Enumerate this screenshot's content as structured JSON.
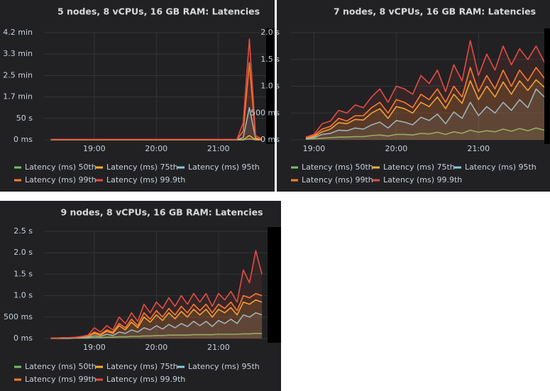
{
  "chart_data": [
    {
      "type": "line",
      "title": "5 nodes, 8 vCPUs, 16 GB RAM: Latencies",
      "x": [
        18.3,
        18.4,
        18.5,
        18.6,
        18.7,
        18.8,
        18.9,
        19.0,
        19.1,
        19.2,
        19.3,
        19.4,
        19.5,
        19.6,
        19.7,
        19.8,
        19.9,
        20.0,
        20.1,
        20.2,
        20.3,
        20.4,
        20.5,
        20.6,
        20.7,
        20.8,
        20.9,
        21.0,
        21.1,
        21.2,
        21.3,
        21.4,
        21.5,
        21.6,
        21.7
      ],
      "xlim": [
        18.19,
        21.77
      ],
      "xticks": [
        {
          "value": 19,
          "label": "19:00"
        },
        {
          "value": 20,
          "label": "20:00"
        },
        {
          "value": 21,
          "label": "21:00"
        }
      ],
      "ylim": [
        0,
        250
      ],
      "yticks": [
        {
          "value": 0,
          "label": "0 ms"
        },
        {
          "value": 50,
          "label": "50 s"
        },
        {
          "value": 100,
          "label": "1.7 min"
        },
        {
          "value": 150,
          "label": "2.5 min"
        },
        {
          "value": 200,
          "label": "3.3 min"
        },
        {
          "value": 250,
          "label": "4.2 min"
        }
      ],
      "grid": true,
      "series": [
        {
          "name": "Latency (ms) 50th",
          "color": "#73bf69",
          "values": [
            0.1,
            0.1,
            0.1,
            0.1,
            0.1,
            0.1,
            0.1,
            0.1,
            0.1,
            0.1,
            0.1,
            0.1,
            0.1,
            0.1,
            0.1,
            0.1,
            0.1,
            0.1,
            0.1,
            0.1,
            0.1,
            0.1,
            0.1,
            0.1,
            0.1,
            0.1,
            0.1,
            0.1,
            0.1,
            0.1,
            0.1,
            0.1,
            2,
            0.1,
            0.1
          ]
        },
        {
          "name": "Latency (ms) 75th",
          "color": "#f2b134",
          "values": [
            0.2,
            0.2,
            0.2,
            0.2,
            0.2,
            0.2,
            0.2,
            0.2,
            0.2,
            0.2,
            0.2,
            0.2,
            0.2,
            0.2,
            0.2,
            0.2,
            0.2,
            0.2,
            0.2,
            0.2,
            0.2,
            0.2,
            0.2,
            0.2,
            0.2,
            0.2,
            0.2,
            0.2,
            0.2,
            0.2,
            0.2,
            0.2,
            10,
            0.2,
            0.2
          ]
        },
        {
          "name": "Latency (ms) 95th",
          "color": "#8ac8d8",
          "values": [
            0.3,
            0.3,
            0.3,
            0.3,
            0.3,
            0.3,
            0.3,
            0.3,
            0.3,
            0.3,
            0.3,
            0.3,
            0.3,
            0.3,
            0.3,
            0.3,
            0.3,
            0.3,
            0.3,
            0.3,
            0.3,
            0.3,
            0.3,
            0.3,
            0.3,
            0.3,
            0.3,
            0.3,
            0.3,
            0.3,
            0.3,
            5,
            75,
            3,
            0.3
          ]
        },
        {
          "name": "Latency (ms) 99th",
          "color": "#ff7f2a",
          "values": [
            0.5,
            0.5,
            0.5,
            0.5,
            0.5,
            0.5,
            0.5,
            0.5,
            0.5,
            0.5,
            0.5,
            0.5,
            0.5,
            0.5,
            0.5,
            0.5,
            0.5,
            0.5,
            0.5,
            0.5,
            0.5,
            0.5,
            0.5,
            0.5,
            0.5,
            0.5,
            0.5,
            0.5,
            0.5,
            0.5,
            0.5,
            20,
            180,
            5,
            0.5
          ]
        },
        {
          "name": "Latency (ms) 99.9th",
          "color": "#e24d42",
          "values": [
            1,
            1,
            1,
            1,
            1,
            1,
            1,
            1,
            1,
            1,
            1,
            1,
            1,
            1,
            1,
            1,
            1,
            1,
            1,
            1,
            1,
            1,
            1,
            1,
            1,
            1,
            1,
            1,
            1,
            1,
            1,
            40,
            235,
            10,
            2
          ]
        }
      ]
    },
    {
      "type": "line",
      "title": "7 nodes, 8 vCPUs, 16 GB RAM: Latencies",
      "x": [
        18.9,
        19.0,
        19.1,
        19.2,
        19.3,
        19.4,
        19.5,
        19.6,
        19.7,
        19.8,
        19.9,
        20.0,
        20.1,
        20.2,
        20.3,
        20.4,
        20.5,
        20.6,
        20.7,
        20.8,
        20.9,
        21.0,
        21.1,
        21.2,
        21.3,
        21.4,
        21.5,
        21.6,
        21.7,
        21.8
      ],
      "xlim": [
        18.72,
        21.8
      ],
      "xticks": [
        {
          "value": 19,
          "label": "19:00"
        },
        {
          "value": 20,
          "label": "20:00"
        },
        {
          "value": 21,
          "label": "21:00"
        }
      ],
      "ylim": [
        0,
        2
      ],
      "yticks": [
        {
          "value": 0,
          "label": "0 ms"
        },
        {
          "value": 0.5,
          "label": "500 ms"
        },
        {
          "value": 1,
          "label": "1.0 s"
        },
        {
          "value": 1.5,
          "label": "1.5 s"
        },
        {
          "value": 2,
          "label": "2.0 s"
        }
      ],
      "grid": true,
      "series": [
        {
          "name": "Latency (ms) 50th",
          "color": "#73bf69",
          "values": [
            0.01,
            0.02,
            0.03,
            0.04,
            0.05,
            0.05,
            0.06,
            0.06,
            0.08,
            0.09,
            0.07,
            0.1,
            0.1,
            0.09,
            0.12,
            0.11,
            0.14,
            0.1,
            0.15,
            0.12,
            0.18,
            0.14,
            0.17,
            0.15,
            0.2,
            0.16,
            0.21,
            0.17,
            0.22,
            0.18
          ]
        },
        {
          "name": "Latency (ms) 75th",
          "color": "#f2b134",
          "values": [
            0.03,
            0.06,
            0.15,
            0.2,
            0.32,
            0.3,
            0.38,
            0.37,
            0.5,
            0.58,
            0.4,
            0.62,
            0.58,
            0.5,
            0.7,
            0.62,
            0.8,
            0.58,
            0.85,
            0.68,
            1.1,
            0.75,
            1.0,
            0.8,
            1.08,
            0.85,
            1.1,
            0.92,
            1.12,
            0.98
          ]
        },
        {
          "name": "Latency (ms) 95th",
          "color": "#8ac8d8",
          "values": [
            0.02,
            0.04,
            0.1,
            0.12,
            0.18,
            0.17,
            0.22,
            0.2,
            0.28,
            0.33,
            0.22,
            0.36,
            0.33,
            0.28,
            0.42,
            0.36,
            0.48,
            0.3,
            0.52,
            0.4,
            0.7,
            0.45,
            0.62,
            0.5,
            0.7,
            0.55,
            0.75,
            0.6,
            0.95,
            0.8
          ]
        },
        {
          "name": "Latency (ms) 99th",
          "color": "#ff7f2a",
          "values": [
            0.04,
            0.08,
            0.2,
            0.25,
            0.4,
            0.35,
            0.45,
            0.45,
            0.6,
            0.7,
            0.5,
            0.75,
            0.7,
            0.6,
            0.85,
            0.75,
            0.95,
            0.7,
            1.0,
            0.8,
            1.35,
            0.9,
            1.2,
            0.95,
            1.3,
            1.0,
            1.3,
            1.1,
            1.35,
            1.15
          ]
        },
        {
          "name": "Latency (ms) 99.9th",
          "color": "#e24d42",
          "values": [
            0.05,
            0.1,
            0.3,
            0.35,
            0.55,
            0.5,
            0.65,
            0.6,
            0.8,
            0.95,
            0.7,
            1.0,
            0.95,
            0.85,
            1.2,
            1.05,
            1.3,
            0.9,
            1.4,
            1.1,
            1.85,
            1.2,
            1.6,
            1.3,
            1.75,
            1.4,
            1.7,
            1.5,
            1.75,
            1.45
          ]
        }
      ]
    },
    {
      "type": "line",
      "title": "9 nodes, 8 vCPUs, 16 GB RAM: Latencies",
      "x": [
        18.3,
        18.4,
        18.5,
        18.6,
        18.7,
        18.8,
        18.9,
        19.0,
        19.1,
        19.2,
        19.3,
        19.4,
        19.5,
        19.6,
        19.7,
        19.8,
        19.9,
        20.0,
        20.1,
        20.2,
        20.3,
        20.4,
        20.5,
        20.6,
        20.7,
        20.8,
        20.9,
        21.0,
        21.1,
        21.2,
        21.3,
        21.4,
        21.5,
        21.6,
        21.7
      ],
      "xlim": [
        18.19,
        21.79
      ],
      "xticks": [
        {
          "value": 19,
          "label": "19:00"
        },
        {
          "value": 20,
          "label": "20:00"
        },
        {
          "value": 21,
          "label": "21:00"
        }
      ],
      "ylim": [
        0,
        2.5
      ],
      "yticks": [
        {
          "value": 0,
          "label": "0 ms"
        },
        {
          "value": 0.5,
          "label": "500 ms"
        },
        {
          "value": 1,
          "label": "1.0 s"
        },
        {
          "value": 1.5,
          "label": "1.5 s"
        },
        {
          "value": 2,
          "label": "2.0 s"
        },
        {
          "value": 2.5,
          "label": "2.5 s"
        }
      ],
      "grid": true,
      "series": [
        {
          "name": "Latency (ms) 50th",
          "color": "#73bf69",
          "values": [
            0,
            0,
            0,
            0,
            0.01,
            0.01,
            0.01,
            0.02,
            0.02,
            0.03,
            0.03,
            0.04,
            0.04,
            0.05,
            0.05,
            0.06,
            0.06,
            0.07,
            0.07,
            0.08,
            0.08,
            0.08,
            0.08,
            0.09,
            0.09,
            0.09,
            0.09,
            0.1,
            0.1,
            0.1,
            0.1,
            0.11,
            0.11,
            0.12,
            0.12
          ]
        },
        {
          "name": "Latency (ms) 75th",
          "color": "#f2b134",
          "values": [
            0.01,
            0.01,
            0.01,
            0.02,
            0.02,
            0.03,
            0.05,
            0.12,
            0.08,
            0.17,
            0.12,
            0.3,
            0.2,
            0.38,
            0.25,
            0.5,
            0.38,
            0.55,
            0.42,
            0.6,
            0.46,
            0.63,
            0.5,
            0.68,
            0.55,
            0.68,
            0.5,
            0.68,
            0.6,
            0.72,
            0.55,
            0.85,
            0.8,
            0.9,
            0.85
          ]
        },
        {
          "name": "Latency (ms) 95th",
          "color": "#8ac8d8",
          "values": [
            0.01,
            0.01,
            0.01,
            0.01,
            0.02,
            0.02,
            0.03,
            0.06,
            0.05,
            0.1,
            0.07,
            0.15,
            0.12,
            0.2,
            0.15,
            0.25,
            0.2,
            0.3,
            0.22,
            0.33,
            0.25,
            0.35,
            0.28,
            0.4,
            0.3,
            0.4,
            0.28,
            0.42,
            0.35,
            0.45,
            0.35,
            0.55,
            0.5,
            0.6,
            0.55
          ]
        },
        {
          "name": "Latency (ms) 99th",
          "color": "#ff7f2a",
          "values": [
            0.01,
            0.01,
            0.02,
            0.02,
            0.02,
            0.04,
            0.06,
            0.15,
            0.1,
            0.2,
            0.15,
            0.35,
            0.25,
            0.45,
            0.3,
            0.6,
            0.45,
            0.65,
            0.5,
            0.7,
            0.55,
            0.75,
            0.6,
            0.8,
            0.65,
            0.8,
            0.6,
            0.8,
            0.7,
            0.85,
            0.65,
            1.0,
            0.95,
            1.05,
            1.0
          ]
        },
        {
          "name": "Latency (ms) 99.9th",
          "color": "#e24d42",
          "values": [
            0.01,
            0.01,
            0.02,
            0.02,
            0.03,
            0.05,
            0.08,
            0.25,
            0.15,
            0.3,
            0.2,
            0.5,
            0.35,
            0.6,
            0.4,
            0.8,
            0.6,
            0.85,
            0.7,
            0.95,
            0.75,
            1.0,
            0.8,
            1.05,
            0.85,
            1.05,
            0.75,
            1.05,
            0.9,
            1.1,
            0.85,
            1.6,
            1.3,
            2.05,
            1.5
          ]
        }
      ]
    }
  ]
}
